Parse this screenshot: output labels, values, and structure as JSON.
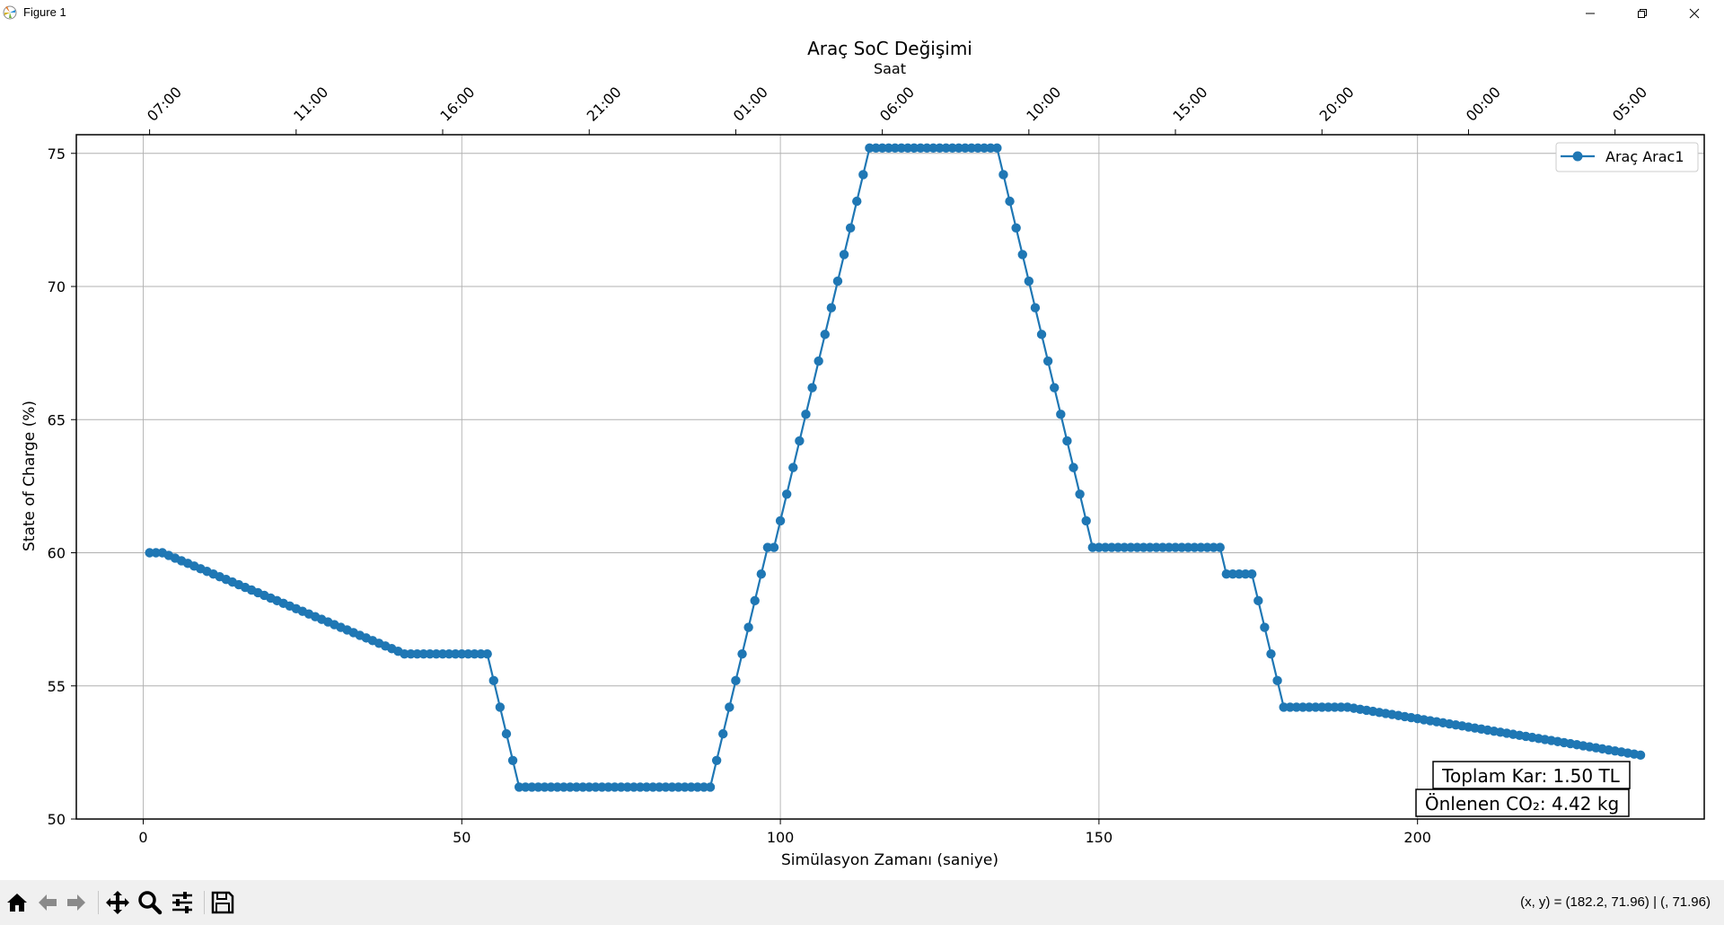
{
  "window": {
    "title": "Figure 1"
  },
  "toolbar": {
    "icons": [
      "home-icon",
      "back-icon",
      "forward-icon",
      "pan-icon",
      "zoom-icon",
      "configure-subplots-icon",
      "save-icon"
    ],
    "coords_text": "(x, y) = (182.2, 71.96) | (, 71.96)"
  },
  "chart_data": {
    "type": "line",
    "title": "Araç SoC Değişimi",
    "top_axis_label": "Saat",
    "xlabel": "Simülasyon Zamanı (saniye)",
    "ylabel": "State of Charge (%)",
    "xlim": [
      -10.5,
      245
    ],
    "ylim": [
      50,
      75.7
    ],
    "xticks": [
      0,
      50,
      100,
      150,
      200
    ],
    "yticks": [
      50,
      55,
      60,
      65,
      70,
      75
    ],
    "top_ticks": [
      {
        "x": 1,
        "label": "07:00"
      },
      {
        "x": 24,
        "label": "11:00"
      },
      {
        "x": 47,
        "label": "16:00"
      },
      {
        "x": 70,
        "label": "21:00"
      },
      {
        "x": 93,
        "label": "01:00"
      },
      {
        "x": 116,
        "label": "06:00"
      },
      {
        "x": 139,
        "label": "10:00"
      },
      {
        "x": 162,
        "label": "15:00"
      },
      {
        "x": 185,
        "label": "20:00"
      },
      {
        "x": 208,
        "label": "00:00"
      },
      {
        "x": 231,
        "label": "05:00"
      }
    ],
    "grid": true,
    "legend_position": "top-right",
    "series": [
      {
        "name": "Araç Arac1",
        "color": "#1f77b4",
        "segments": [
          {
            "x0": 1,
            "x1": 3,
            "y0": 60.0,
            "y1": 60.0
          },
          {
            "x0": 3,
            "x1": 41,
            "y0": 60.0,
            "y1": 56.2
          },
          {
            "x0": 41,
            "x1": 54,
            "y0": 56.2,
            "y1": 56.2
          },
          {
            "x0": 54,
            "x1": 59,
            "y0": 56.2,
            "y1": 51.2
          },
          {
            "x0": 59,
            "x1": 89,
            "y0": 51.2,
            "y1": 51.2
          },
          {
            "x0": 89,
            "x1": 98,
            "y0": 51.2,
            "y1": 60.2
          },
          {
            "x0": 98,
            "x1": 99,
            "y0": 60.2,
            "y1": 60.2
          },
          {
            "x0": 99,
            "x1": 114,
            "y0": 60.2,
            "y1": 75.2
          },
          {
            "x0": 114,
            "x1": 134,
            "y0": 75.2,
            "y1": 75.2
          },
          {
            "x0": 134,
            "x1": 149,
            "y0": 75.2,
            "y1": 60.2
          },
          {
            "x0": 149,
            "x1": 169,
            "y0": 60.2,
            "y1": 60.2
          },
          {
            "x0": 169,
            "x1": 170,
            "y0": 60.2,
            "y1": 59.2
          },
          {
            "x0": 170,
            "x1": 174,
            "y0": 59.2,
            "y1": 59.2
          },
          {
            "x0": 174,
            "x1": 179,
            "y0": 59.2,
            "y1": 54.2
          },
          {
            "x0": 179,
            "x1": 189,
            "y0": 54.2,
            "y1": 54.2
          },
          {
            "x0": 189,
            "x1": 235,
            "y0": 54.2,
            "y1": 52.4
          }
        ]
      }
    ],
    "annotations": [
      "Toplam Kar: 1.50 TL",
      "Önlenen CO₂: 4.42 kg"
    ]
  }
}
